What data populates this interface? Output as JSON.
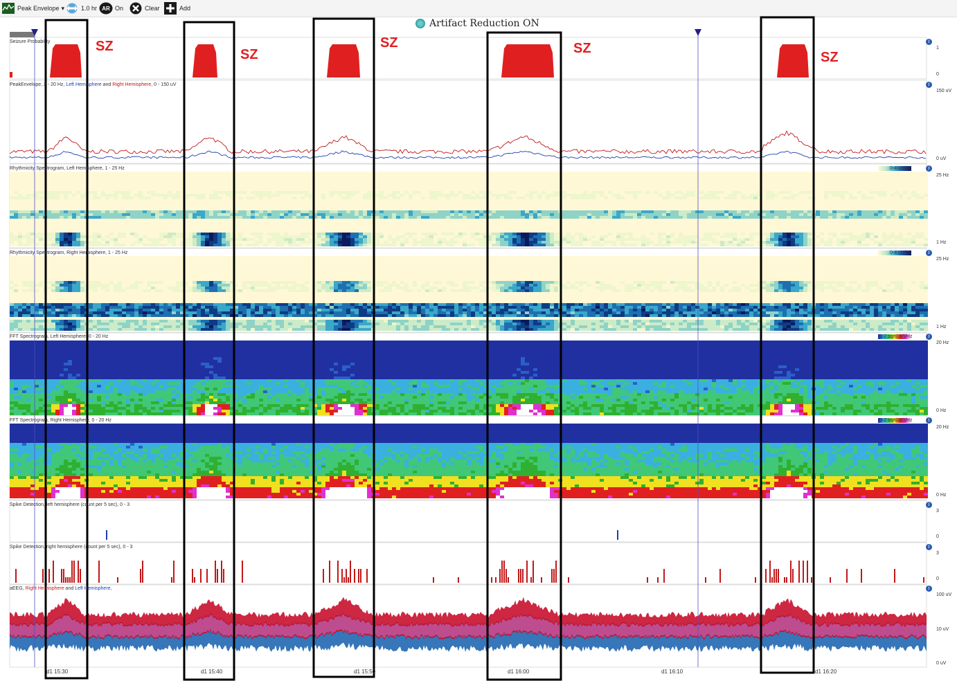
{
  "toolbar": {
    "trend_select": "Peak Envelope",
    "timebase": "1.0 hr",
    "ar_icon": "AR",
    "ar_state": "On",
    "clear_label": "Clear",
    "add_label": "Add"
  },
  "header": {
    "title": "Artifact Reduction ON"
  },
  "panels": {
    "seizure": {
      "title": "Seizure Probability",
      "scale_max": "1",
      "scale_min": "0"
    },
    "peak": {
      "title_a": "PeakEnvelope, 2 - 20 Hz, ",
      "title_left": "Left Hemisphere",
      "title_and": " and ",
      "title_right": "Right Hemisphere",
      "title_b": ", 0 - 150 uV",
      "scale_max": "150 uV",
      "scale_min": "0 uV"
    },
    "rhythm_left": {
      "title": "Rhythmicity Spectrogram, Left Hemisphere, 1 - 25 Hz",
      "scale_max": "25 Hz",
      "scale_min": "1 Hz",
      "colorbar_label": "0-4 uV/Hz"
    },
    "rhythm_right": {
      "title": "Rhythmicity Spectrogram, Right Hemisphere, 1 - 25 Hz",
      "scale_max": "25 Hz",
      "scale_min": "1 Hz",
      "colorbar_label": "0-4 uV/Hz"
    },
    "fft_left": {
      "title": "FFT Spectrogram, Left Hemisphere, 0 - 20 Hz",
      "scale_max": "20 Hz",
      "scale_min": "0 Hz",
      "colorbar_label": "0-2 sqrt(uV)/Hz"
    },
    "fft_right": {
      "title": "FFT Spectrogram, Right Hemisphere, 0 - 20 Hz",
      "scale_max": "20 Hz",
      "scale_min": "0 Hz",
      "colorbar_label": "0-2 sqrt(uV)/Hz"
    },
    "spike_left": {
      "title": "Spike Detection, left hemisphere (count per 5 sec), 0 - 3",
      "scale_max": "3",
      "scale_min": "0"
    },
    "spike_right": {
      "title": "Spike Detection, right hemisphere (count per 5 sec), 0 - 3",
      "scale_max": "3",
      "scale_min": "0"
    },
    "aeeg": {
      "title_a": "aEEG, ",
      "title_right": "Right Hemisphere",
      "title_and": " and ",
      "title_left": "Left Hemisphere",
      "title_b": ",",
      "scale_max": "100 uV",
      "scale_mid": "10 uV",
      "scale_min": "0 uV"
    }
  },
  "time_ticks": [
    "d1 15:30",
    "d1 15:40",
    "d1 15:50",
    "d1 16:00",
    "d1 16:10",
    "d1 16:20"
  ],
  "annotations": [
    "SZ",
    "SZ",
    "SZ",
    "SZ",
    "SZ"
  ],
  "colors": {
    "seizure": "#e02020",
    "left": "#1a3fb0",
    "right": "#c01818",
    "box": "#000000",
    "aeeg_left": "#2b6fb5",
    "aeeg_right": "#c8102e",
    "aeeg_mix": "#c070c8"
  }
}
